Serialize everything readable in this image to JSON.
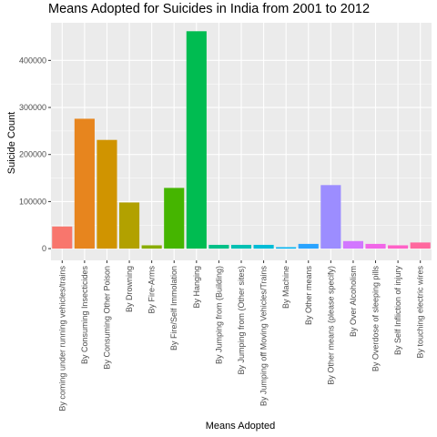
{
  "chart_data": {
    "type": "bar",
    "title": "Means Adopted for Suicides in India from 2001 to 2012",
    "xlabel": "Means Adopted",
    "ylabel": "Suicide Count",
    "ylim": [
      -25000,
      480000
    ],
    "yticks": [
      0,
      100000,
      200000,
      300000,
      400000
    ],
    "ytick_labels": [
      "0",
      "100000",
      "200000",
      "300000",
      "400000"
    ],
    "grid": true,
    "legend": "none",
    "categories": [
      "By coming under running vehicles/trains",
      "By Consuming Insecticides",
      "By Consuming Other Poison",
      "By Drowning",
      "By Fire-Arms",
      "By Fire/Self Immolation",
      "By Hanging",
      "By Jumping from (Building)",
      "By Jumping from (Other sites)",
      "By Jumping off Moving Vehicles/Trains",
      "By Machine",
      "By Other means",
      "By Other means (please specify)",
      "By Over Alcoholism",
      "By Overdose of sleeping pills",
      "By Self Infliction of injury",
      "By touching electric wires"
    ],
    "values": [
      47000,
      276000,
      231000,
      98000,
      7000,
      129000,
      462000,
      8000,
      8000,
      8000,
      3000,
      10000,
      135000,
      16000,
      10000,
      7000,
      13000
    ],
    "colors": [
      "#F8766D",
      "#E7851E",
      "#D09400",
      "#B2A100",
      "#89AC00",
      "#45B500",
      "#00BC51",
      "#00C087",
      "#00C0B2",
      "#00BCD6",
      "#00B3F2",
      "#29A3FF",
      "#9C8DFF",
      "#D277FF",
      "#F166E8",
      "#FF61C7",
      "#FF689E"
    ],
    "panel_background": "#EBEBEB",
    "grid_color": "#FFFFFF"
  }
}
